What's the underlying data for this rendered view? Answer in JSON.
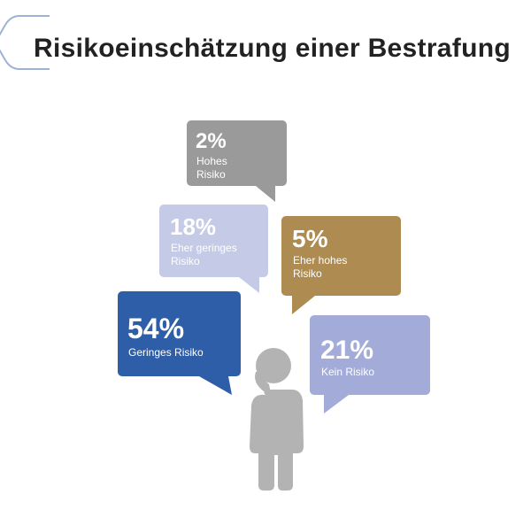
{
  "title": "Risikoeinschätzung einer Bestrafung",
  "chart_data": {
    "type": "pie",
    "title": "Risikoeinschätzung einer Bestrafung",
    "unit": "%",
    "categories": [
      "Hohes Risiko",
      "Eher geringes Risiko",
      "Eher hohes Risiko",
      "Geringes Risiko",
      "Kein Risiko"
    ],
    "values": [
      2,
      18,
      5,
      54,
      21
    ],
    "value_labels": [
      "2%",
      "18%",
      "5%",
      "54%",
      "21%"
    ],
    "label_lines": [
      [
        "Hohes",
        "Risiko"
      ],
      [
        "Eher geringes",
        "Risiko"
      ],
      [
        "Eher hohes",
        "Risiko"
      ],
      [
        "Geringes Risiko"
      ],
      [
        "Kein Risiko"
      ]
    ],
    "colors": [
      "#9a9a9a",
      "#c5cae6",
      "#ae8b51",
      "#2e5ea8",
      "#a3abd8"
    ]
  },
  "colors": {
    "title_accent": "#8ea3cf",
    "figure": "#b3b3b3"
  }
}
